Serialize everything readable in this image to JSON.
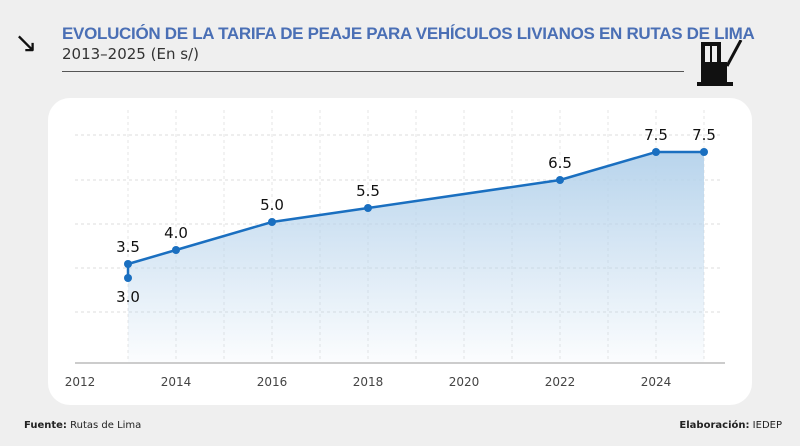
{
  "header": {
    "title": "EVOLUCIÓN DE LA TARIFA DE PEAJE PARA VEHÍCULOS LIVIANOS EN RUTAS DE LIMA",
    "subtitle": "2013–2025 (En s/)",
    "icon_left": "arrow-down-right-icon",
    "icon_right": "toll-booth-icon"
  },
  "footer": {
    "source_label": "Fuente:",
    "source": "Rutas de Lima",
    "credit_label": "Elaboración:",
    "credit": "IEDEP"
  },
  "chart_data": {
    "type": "area",
    "title": "EVOLUCIÓN DE LA TARIFA DE PEAJE PARA VEHÍCULOS LIVIANOS EN RUTAS DE LIMA",
    "subtitle": "2013–2025 (En s/)",
    "xlabel": "",
    "ylabel": "",
    "xlim": [
      2012,
      2025
    ],
    "ylim": [
      0,
      8.5
    ],
    "xticks": [
      2012,
      2014,
      2016,
      2018,
      2020,
      2022,
      2024
    ],
    "grid": true,
    "color": "#1a6fc0",
    "points": [
      {
        "x": 2013,
        "y": 3.0,
        "label": "3.0",
        "pos": "below"
      },
      {
        "x": 2013,
        "y": 3.5,
        "label": "3.5",
        "pos": "above"
      },
      {
        "x": 2014,
        "y": 4.0,
        "label": "4.0",
        "pos": "above"
      },
      {
        "x": 2016,
        "y": 5.0,
        "label": "5.0",
        "pos": "above"
      },
      {
        "x": 2018,
        "y": 5.5,
        "label": "5.5",
        "pos": "above"
      },
      {
        "x": 2022,
        "y": 6.5,
        "label": "6.5",
        "pos": "above"
      },
      {
        "x": 2024,
        "y": 7.5,
        "label": "7.5",
        "pos": "above"
      },
      {
        "x": 2025,
        "y": 7.5,
        "label": "7.5",
        "pos": "above"
      }
    ]
  }
}
